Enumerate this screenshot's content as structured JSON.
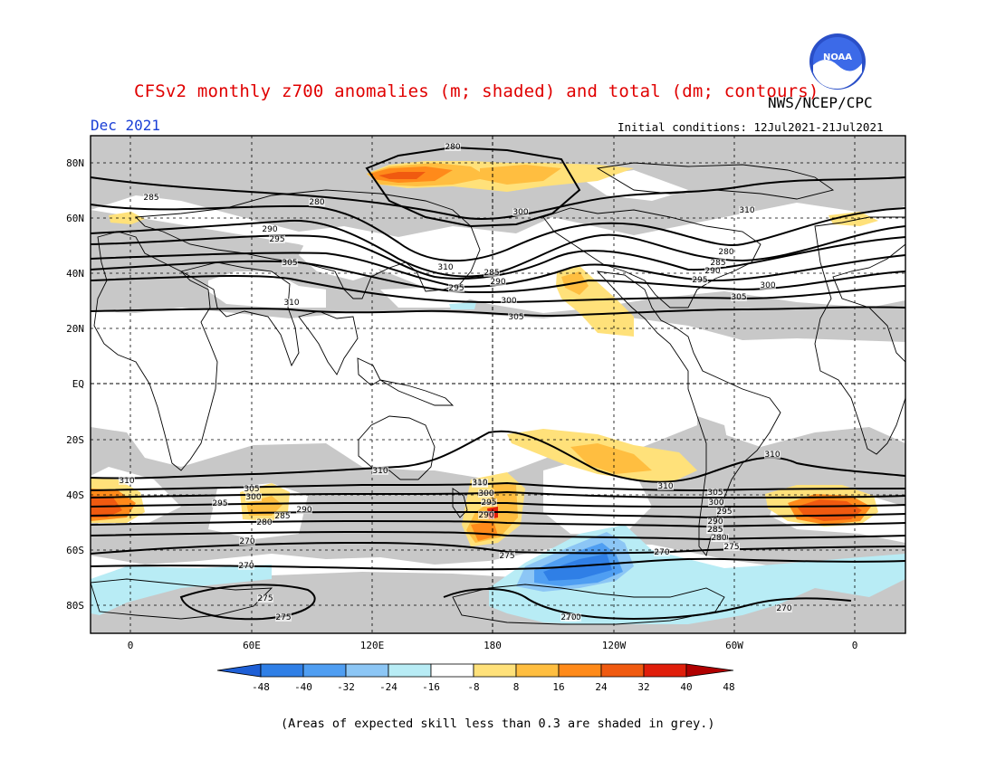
{
  "header": {
    "title": "CFSv2 monthly z700 anomalies (m; shaded) and total (dm; contours)",
    "agency": "NWS/NCEP/CPC",
    "period": "Dec 2021",
    "initial_conditions": "Initial conditions: 12Jul2021-21Jul2021"
  },
  "logo": {
    "text": "NOAA"
  },
  "map": {
    "lat_labels": [
      "80N",
      "60N",
      "40N",
      "20N",
      "EQ",
      "20S",
      "40S",
      "60S",
      "80S"
    ],
    "lon_labels": [
      "0",
      "60E",
      "120E",
      "180",
      "120W",
      "60W",
      "0"
    ],
    "grey_meaning": "skill < 0.3",
    "contour_labels": [
      "280",
      "285",
      "280",
      "290",
      "295",
      "300",
      "305",
      "310",
      "285",
      "290",
      "295",
      "300",
      "305",
      "310",
      "280",
      "285",
      "290",
      "295",
      "300",
      "305",
      "310",
      "310",
      "310",
      "310",
      "305",
      "300",
      "295",
      "290",
      "285",
      "280",
      "275",
      "270",
      "270",
      "275",
      "275",
      "270",
      "270",
      "275",
      "280",
      "285",
      "290",
      "295",
      "300",
      "305",
      "310",
      "270",
      "305",
      "300",
      "295",
      "290",
      "285",
      "280",
      "275",
      "270",
      "310"
    ]
  },
  "colorbar": {
    "ticks": [
      "-48",
      "-40",
      "-32",
      "-24",
      "-16",
      "-8",
      "8",
      "16",
      "24",
      "32",
      "40",
      "48"
    ],
    "colors": [
      "#1e5fd6",
      "#2f7fe6",
      "#4f9ef2",
      "#8cc6f5",
      "#b8ecf5",
      "#ffffff",
      "#ffe17a",
      "#ffbe40",
      "#ff8a1a",
      "#f05a10",
      "#e01e0a",
      "#b00000"
    ],
    "units": "m"
  },
  "footer": {
    "note": "(Areas of expected skill less than 0.3 are shaded in grey.)"
  }
}
